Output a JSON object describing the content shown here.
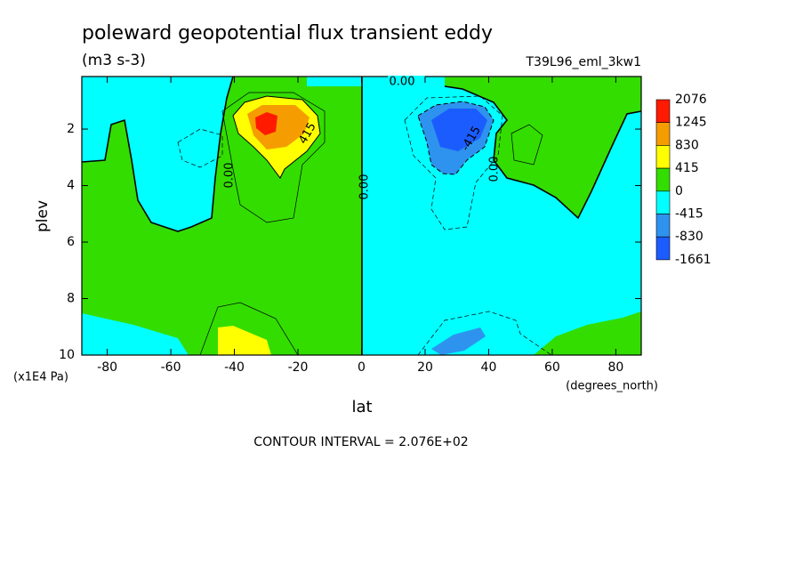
{
  "chart_data": {
    "type": "contour",
    "title": "poleward geopotential flux transient eddy",
    "subtitle": "(m3 s-3)",
    "dataset": "T39L96_eml_3kw1",
    "x_label": "lat",
    "x_units": "(degrees_north)",
    "y_label": "plev",
    "y_units": "(x1E4 Pa)",
    "footer": "CONTOUR INTERVAL = 2.076E+02",
    "xlim": [
      -88,
      88
    ],
    "xticks": [
      -80,
      -60,
      -40,
      -20,
      0,
      20,
      40,
      60,
      80
    ],
    "ylim": [
      10,
      0.14
    ],
    "yticks": [
      2,
      4,
      6,
      8,
      10
    ],
    "levels": [
      2076,
      1245,
      830,
      415,
      0,
      -415,
      -830,
      -1661
    ],
    "colors": [
      "#ff1a00",
      "#f59d00",
      "#ffff00",
      "#33dd00",
      "#00ffff",
      "#2e93ef",
      "#1b5cff"
    ],
    "contour_labels": [
      "0.00",
      "0.00",
      "0.00",
      "0.00",
      "415",
      "-415"
    ]
  }
}
